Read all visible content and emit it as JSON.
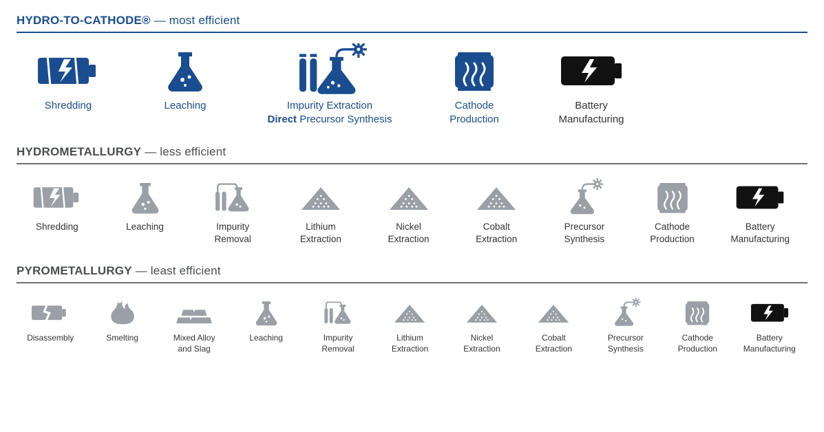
{
  "colors": {
    "brand_blue": "#1a4d8f",
    "brand_blue_dark": "#17447f",
    "grey": "#9aa0a6",
    "grey_dark": "#5f6368",
    "black": "#111111",
    "header_grey": "#4a4d50",
    "rule_grey": "#6b6f73"
  },
  "sections": [
    {
      "id": "hydro-to-cathode",
      "title_strong": "HYDRO-TO-CATHODE®",
      "title_note": "  — most efficient",
      "header_color": "#1a4d8f",
      "rule_color": "#1a4d8f",
      "label_color": "#1a4d8f",
      "row_class": "row-large",
      "icon_scale": 1.0,
      "steps": [
        {
          "icon": "battery-shred",
          "color": "#1a4d8f",
          "label": "Shredding"
        },
        {
          "icon": "flask",
          "color": "#1a4d8f",
          "label": "Leaching"
        },
        {
          "icon": "flask-tubes-gear",
          "color": "#1a4d8f",
          "label_html": "Impurity Extraction\n<span class='bold'>Direct</span> Precursor Synthesis",
          "wide": true
        },
        {
          "icon": "cathode-machine",
          "color": "#1a4d8f",
          "label": "Cathode\nProduction"
        },
        {
          "icon": "battery-bolt",
          "color": "#111111",
          "label": "Battery\nManufacturing",
          "label_color": "#333333"
        }
      ]
    },
    {
      "id": "hydrometallurgy",
      "title_strong": "HYDROMETALLURGY",
      "title_note": " — less efficient",
      "header_color": "#4a4d50",
      "rule_color": "#6b6f73",
      "label_color": "#333333",
      "row_class": "row-med",
      "icon_scale": 0.78,
      "steps": [
        {
          "icon": "battery-shred",
          "color": "#9aa0a6",
          "label": "Shredding"
        },
        {
          "icon": "flask",
          "color": "#9aa0a6",
          "label": "Leaching"
        },
        {
          "icon": "flask-tubes",
          "color": "#9aa0a6",
          "label": "Impurity\nRemoval"
        },
        {
          "icon": "pile",
          "color": "#9aa0a6",
          "label": "Lithium\nExtraction"
        },
        {
          "icon": "pile",
          "color": "#9aa0a6",
          "label": "Nickel\nExtraction"
        },
        {
          "icon": "pile",
          "color": "#9aa0a6",
          "label": "Cobalt\nExtraction"
        },
        {
          "icon": "flask-gear",
          "color": "#9aa0a6",
          "label": "Precursor\nSynthesis"
        },
        {
          "icon": "cathode-machine",
          "color": "#9aa0a6",
          "label": "Cathode\nProduction"
        },
        {
          "icon": "battery-bolt",
          "color": "#111111",
          "label": "Battery\nManufacturing"
        }
      ]
    },
    {
      "id": "pyrometallurgy",
      "title_strong": "PYROMETALLURGY",
      "title_note": " — least efficient",
      "header_color": "#4a4d50",
      "rule_color": "#6b6f73",
      "label_color": "#333333",
      "row_class": "row-small",
      "icon_scale": 0.62,
      "steps": [
        {
          "icon": "battery-crack",
          "color": "#9aa0a6",
          "label": "Disassembly"
        },
        {
          "icon": "flame",
          "color": "#9aa0a6",
          "label": "Smelting"
        },
        {
          "icon": "ingots",
          "color": "#9aa0a6",
          "label": "Mixed Alloy\nand Slag"
        },
        {
          "icon": "flask",
          "color": "#9aa0a6",
          "label": "Leaching"
        },
        {
          "icon": "flask-tubes",
          "color": "#9aa0a6",
          "label": "Impurity\nRemoval"
        },
        {
          "icon": "pile",
          "color": "#9aa0a6",
          "label": "Lithium\nExtraction"
        },
        {
          "icon": "pile",
          "color": "#9aa0a6",
          "label": "Nickel\nExtraction"
        },
        {
          "icon": "pile",
          "color": "#9aa0a6",
          "label": "Cobalt\nExtraction"
        },
        {
          "icon": "flask-gear",
          "color": "#9aa0a6",
          "label": "Precursor\nSynthesis"
        },
        {
          "icon": "cathode-machine",
          "color": "#9aa0a6",
          "label": "Cathode\nProduction"
        },
        {
          "icon": "battery-bolt",
          "color": "#111111",
          "label": "Battery\nManufacturing"
        }
      ]
    }
  ]
}
